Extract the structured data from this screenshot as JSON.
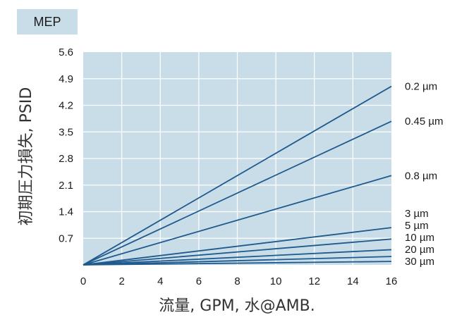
{
  "badge": "MEP",
  "colors": {
    "plot_bg": "#c9dde8",
    "grid": "#ffffff",
    "line": "#1f5a8e",
    "badge_bg": "#c9dde8"
  },
  "chart_data": {
    "type": "line",
    "title": "",
    "xlabel": "流量, GPM, 水@AMB.",
    "ylabel": "初期圧力損失, PSID",
    "xlim": [
      0,
      16
    ],
    "ylim": [
      0,
      5.6
    ],
    "xticks": [
      0,
      2,
      4,
      6,
      8,
      10,
      12,
      14,
      16
    ],
    "yticks": [
      0.7,
      1.4,
      2.1,
      2.8,
      3.5,
      4.2,
      4.9,
      5.6
    ],
    "grid": true,
    "series": [
      {
        "name": "0.2 µm",
        "x": [
          0,
          16
        ],
        "y": [
          0,
          4.7
        ]
      },
      {
        "name": "0.45 µm",
        "x": [
          0,
          16
        ],
        "y": [
          0,
          3.78
        ]
      },
      {
        "name": "0.8 µm",
        "x": [
          0,
          16
        ],
        "y": [
          0,
          2.35
        ]
      },
      {
        "name": "3 µm",
        "x": [
          0,
          16
        ],
        "y": [
          0,
          0.98
        ]
      },
      {
        "name": "5 µm",
        "x": [
          0,
          16
        ],
        "y": [
          0,
          0.68
        ]
      },
      {
        "name": "10 µm",
        "x": [
          0,
          16
        ],
        "y": [
          0,
          0.4
        ]
      },
      {
        "name": "20 µm",
        "x": [
          0,
          16
        ],
        "y": [
          0,
          0.22
        ]
      },
      {
        "name": "30 µm",
        "x": [
          0,
          16
        ],
        "y": [
          0,
          0.09
        ]
      }
    ]
  }
}
